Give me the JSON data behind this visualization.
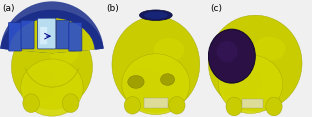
{
  "background_color": "#f0f0f0",
  "panel_labels": [
    "(a)",
    "(b)",
    "(c)"
  ],
  "label_fontsize": 6.5,
  "skull_yellow": "#c8cc00",
  "skull_yellow2": "#d4d800",
  "skull_shadow": "#a0a400",
  "blue_dark": "#1a2e8a",
  "blue_mid": "#2e50c8",
  "blue_light": "#6090d8",
  "cyan_light": "#b8ddf0",
  "cyan_highlight": "#ddf0ff",
  "dark_purple": "#2a1045",
  "purple_mid": "#3c1860",
  "small_disk_dark": "#151a60",
  "figsize": [
    3.12,
    1.17
  ],
  "dpi": 100
}
